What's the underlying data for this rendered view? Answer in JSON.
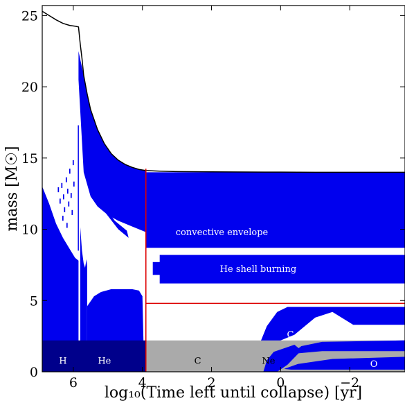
{
  "chart_data": {
    "type": "area",
    "title": "",
    "xlabel": "log₁₀(Time left until collapse) [yr]",
    "ylabel": "mass [M☉]",
    "xlim": [
      6.9,
      -3.6
    ],
    "ylim": [
      0,
      25.7
    ],
    "x_ticks": [
      6,
      4,
      2,
      0,
      -2
    ],
    "x_tick_labels": [
      "6",
      "4",
      "2",
      "0",
      "−2"
    ],
    "y_ticks": [
      0,
      5,
      10,
      15,
      20,
      25
    ],
    "y_tick_labels": [
      "0",
      "5",
      "10",
      "15",
      "20",
      "25"
    ],
    "grid": false,
    "colors": {
      "convective": "#0000ee",
      "burning_phase_band": "#00008b",
      "shaded_band": "#aaaaaa",
      "total_mass_line": "#000000",
      "marker_lines": "#dd0000"
    },
    "total_mass": {
      "x": [
        6.9,
        6.7,
        6.5,
        6.3,
        6.1,
        5.95,
        5.85,
        5.8,
        5.75,
        5.7,
        5.6,
        5.5,
        5.3,
        5.1,
        4.9,
        4.7,
        4.5,
        4.3,
        4.1,
        3.9,
        3.5,
        3.0,
        2.0,
        1.0,
        0,
        -1.0,
        -2.0,
        -3.6
      ],
      "y": [
        25.3,
        25.0,
        24.7,
        24.45,
        24.3,
        24.25,
        24.2,
        23.0,
        22.0,
        20.8,
        19.5,
        18.4,
        17.0,
        16.0,
        15.3,
        14.85,
        14.55,
        14.35,
        14.2,
        14.12,
        14.08,
        14.05,
        14.03,
        14.02,
        14.01,
        14.0,
        14.0,
        14.0
      ]
    },
    "regions": [
      {
        "name": "convective envelope",
        "x": [
          3.9,
          -3.6
        ],
        "y_range": [
          8.7,
          14.0
        ]
      },
      {
        "name": "He shell burning",
        "x": [
          3.5,
          -3.6
        ],
        "y_range": [
          6.2,
          8.2
        ]
      },
      {
        "name": "C shell burning",
        "x": [
          0.6,
          -3.6
        ],
        "y_range": [
          2.0,
          4.5
        ]
      }
    ],
    "phase_labels": [
      "H",
      "He",
      "C",
      "Ne",
      "O"
    ],
    "shaded_band_y": [
      0,
      2.2
    ],
    "marker_x": 3.9,
    "marker_y": 4.8
  }
}
